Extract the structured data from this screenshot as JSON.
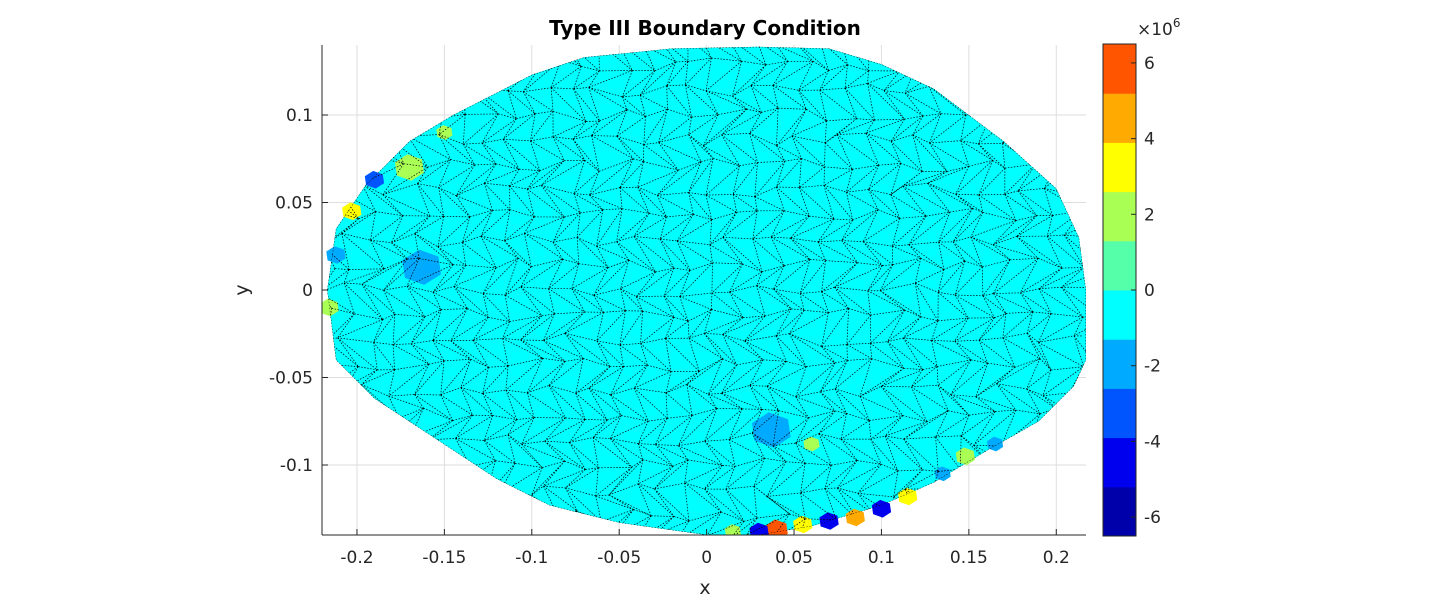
{
  "chart_data": {
    "type": "heatmap",
    "title": "Type III Boundary Condition",
    "xlabel": "x",
    "ylabel": "y",
    "xlim": [
      -0.22,
      0.217
    ],
    "ylim": [
      -0.14,
      0.14
    ],
    "x_ticks": [
      -0.2,
      -0.15,
      -0.1,
      -0.05,
      0,
      0.05,
      0.1,
      0.15,
      0.2
    ],
    "x_tick_labels": [
      "-0.2",
      "-0.15",
      "-0.1",
      "-0.05",
      "0",
      "0.05",
      "0.1",
      "0.15",
      "0.2"
    ],
    "y_ticks": [
      0.1,
      0.05,
      0,
      -0.05,
      -0.1
    ],
    "y_tick_labels": [
      "0.1",
      "0.05",
      "0",
      "-0.05",
      "-0.1"
    ],
    "grid": true,
    "colorbar": {
      "exponent_label": "×10",
      "exponent_power": "6",
      "range": [
        -6.5,
        6.5
      ],
      "tick_values": [
        6,
        4,
        2,
        0,
        -2,
        -4,
        -6
      ],
      "tick_labels": [
        "6",
        "4",
        "2",
        "0",
        "-2",
        "-4",
        "-6"
      ],
      "levels": [
        "#0000aa",
        "#0000ee",
        "#0055ff",
        "#00aaff",
        "#00ffff",
        "#55ffaa",
        "#aaff55",
        "#ffff00",
        "#ffaa00",
        "#ff5500"
      ]
    },
    "field_base_value": 0,
    "field_base_color": "#00ffff",
    "mesh_color": "#000000",
    "domain_outline": [
      [
        -0.217,
        0.0
      ],
      [
        -0.212,
        0.035
      ],
      [
        -0.195,
        0.06
      ],
      [
        -0.17,
        0.085
      ],
      [
        -0.145,
        0.1
      ],
      [
        -0.1,
        0.123
      ],
      [
        -0.07,
        0.133
      ],
      [
        -0.02,
        0.138
      ],
      [
        0.03,
        0.139
      ],
      [
        0.07,
        0.138
      ],
      [
        0.1,
        0.129
      ],
      [
        0.13,
        0.115
      ],
      [
        0.17,
        0.085
      ],
      [
        0.2,
        0.058
      ],
      [
        0.213,
        0.03
      ],
      [
        0.217,
        0.0
      ],
      [
        0.217,
        -0.04
      ],
      [
        0.21,
        -0.055
      ],
      [
        0.19,
        -0.075
      ],
      [
        0.16,
        -0.092
      ],
      [
        0.13,
        -0.11
      ],
      [
        0.1,
        -0.123
      ],
      [
        0.06,
        -0.135
      ],
      [
        0.03,
        -0.14
      ],
      [
        0.0,
        -0.14
      ],
      [
        -0.05,
        -0.133
      ],
      [
        -0.09,
        -0.123
      ],
      [
        -0.12,
        -0.108
      ],
      [
        -0.155,
        -0.085
      ],
      [
        -0.19,
        -0.062
      ],
      [
        -0.212,
        -0.04
      ]
    ],
    "hotspots": [
      {
        "x": -0.163,
        "y": 0.013,
        "r": 0.012,
        "value": -1.5
      },
      {
        "x": 0.037,
        "y": -0.08,
        "r": 0.012,
        "value": -1.5
      },
      {
        "x": -0.17,
        "y": 0.07,
        "r": 0.009,
        "value": 1.5
      },
      {
        "x": -0.19,
        "y": 0.063,
        "r": 0.006,
        "value": -3
      },
      {
        "x": -0.203,
        "y": 0.045,
        "r": 0.006,
        "value": 3
      },
      {
        "x": -0.212,
        "y": 0.02,
        "r": 0.006,
        "value": -1.5
      },
      {
        "x": -0.216,
        "y": -0.01,
        "r": 0.006,
        "value": 2
      },
      {
        "x": -0.15,
        "y": 0.09,
        "r": 0.005,
        "value": 1.5
      },
      {
        "x": 0.04,
        "y": -0.137,
        "r": 0.007,
        "value": 6
      },
      {
        "x": 0.03,
        "y": -0.138,
        "r": 0.006,
        "value": -5
      },
      {
        "x": 0.055,
        "y": -0.134,
        "r": 0.006,
        "value": 3
      },
      {
        "x": 0.07,
        "y": -0.132,
        "r": 0.006,
        "value": -5
      },
      {
        "x": 0.085,
        "y": -0.13,
        "r": 0.006,
        "value": 4
      },
      {
        "x": 0.1,
        "y": -0.125,
        "r": 0.006,
        "value": -4
      },
      {
        "x": 0.115,
        "y": -0.118,
        "r": 0.006,
        "value": 3
      },
      {
        "x": 0.135,
        "y": -0.105,
        "r": 0.005,
        "value": -2
      },
      {
        "x": 0.148,
        "y": -0.095,
        "r": 0.006,
        "value": 2
      },
      {
        "x": 0.165,
        "y": -0.088,
        "r": 0.005,
        "value": -2
      },
      {
        "x": 0.06,
        "y": -0.088,
        "r": 0.005,
        "value": 2
      },
      {
        "x": 0.015,
        "y": -0.138,
        "r": 0.005,
        "value": 2
      }
    ]
  }
}
